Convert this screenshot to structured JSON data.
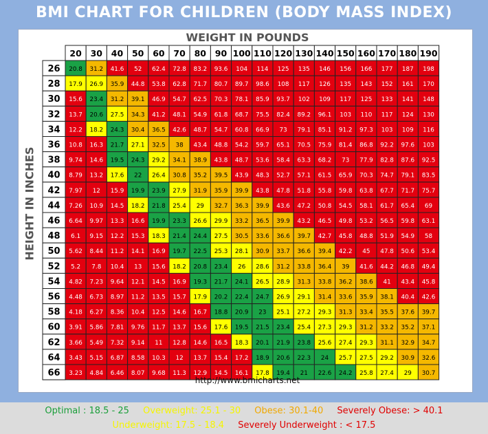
{
  "title": "BMI CHART FOR CHILDREN (BODY MASS INDEX)",
  "source_url": "http://www.bmicharts.net",
  "legend": {
    "row1": [
      {
        "label": "Optimal : 18.5 - 25",
        "color": "#1a9e3a"
      },
      {
        "label": "Overweight: 25.1 - 30",
        "color": "#f5f500"
      },
      {
        "label": "Obese: 30.1-40",
        "color": "#f0a800"
      },
      {
        "label": "Severely Obese: > 40.1",
        "color": "#e00000"
      }
    ],
    "row2": [
      {
        "label": "Underweight: 17.5 - 18.4",
        "color": "#f5f500"
      },
      {
        "label": "Severely Underweight : < 17.5",
        "color": "#e00000"
      }
    ]
  },
  "colors": {
    "optimal": "#1aa246",
    "overweight": "#ffff00",
    "obese": "#f5b800",
    "severe": "#e3000f",
    "grid_line": "#222222"
  },
  "chart_data": {
    "type": "table",
    "title": "BMI CHART FOR CHILDREN (BODY MASS INDEX)",
    "xlabel": "WEIGHT IN POUNDS",
    "ylabel": "HEIGHT IN INCHES",
    "weights": [
      "20",
      "30",
      "40",
      "50",
      "60",
      "70",
      "80",
      "90",
      "100",
      "110",
      "120",
      "130",
      "140",
      "150",
      "160",
      "170",
      "180",
      "190"
    ],
    "heights": [
      "26",
      "28",
      "30",
      "32",
      "34",
      "36",
      "38",
      "40",
      "42",
      "44",
      "46",
      "48",
      "50",
      "52",
      "54",
      "56",
      "58",
      "60",
      "62",
      "64",
      "66"
    ],
    "values": [
      [
        "20.8",
        "31.2",
        "41.6",
        "52",
        "62.4",
        "72.8",
        "83.2",
        "93.6",
        "104",
        "114",
        "125",
        "135",
        "146",
        "156",
        "166",
        "177",
        "187",
        "198"
      ],
      [
        "17.9",
        "26.9",
        "35.9",
        "44.8",
        "53.8",
        "62.8",
        "71.7",
        "80.7",
        "89.7",
        "98.6",
        "108",
        "117",
        "126",
        "135",
        "143",
        "152",
        "161",
        "170"
      ],
      [
        "15.6",
        "23.4",
        "31.2",
        "39.1",
        "46.9",
        "54.7",
        "62.5",
        "70.3",
        "78.1",
        "85.9",
        "93.7",
        "102",
        "109",
        "117",
        "125",
        "133",
        "141",
        "148"
      ],
      [
        "13.7",
        "20.6",
        "27.5",
        "34.3",
        "41.2",
        "48.1",
        "54.9",
        "61.8",
        "68.7",
        "75.5",
        "82.4",
        "89.2",
        "96.1",
        "103",
        "110",
        "117",
        "124",
        "130"
      ],
      [
        "12.2",
        "18.2",
        "24.3",
        "30.4",
        "36.5",
        "42.6",
        "48.7",
        "54.7",
        "60.8",
        "66.9",
        "73",
        "79.1",
        "85.1",
        "91.2",
        "97.3",
        "103",
        "109",
        "116"
      ],
      [
        "10.8",
        "16.3",
        "21.7",
        "27.1",
        "32.5",
        "38",
        "43.4",
        "48.8",
        "54.2",
        "59.7",
        "65.1",
        "70.5",
        "75.9",
        "81.4",
        "86.8",
        "92.2",
        "97.6",
        "103"
      ],
      [
        "9.74",
        "14.6",
        "19.5",
        "24.3",
        "29.2",
        "34.1",
        "38.9",
        "43.8",
        "48.7",
        "53.6",
        "58.4",
        "63.3",
        "68.2",
        "73",
        "77.9",
        "82.8",
        "87.6",
        "92.5"
      ],
      [
        "8.79",
        "13.2",
        "17.6",
        "22",
        "26.4",
        "30.8",
        "35.2",
        "39.5",
        "43.9",
        "48.3",
        "52.7",
        "57.1",
        "61.5",
        "65.9",
        "70.3",
        "74.7",
        "79.1",
        "83.5"
      ],
      [
        "7.97",
        "12",
        "15.9",
        "19.9",
        "23.9",
        "27.9",
        "31.9",
        "35.9",
        "39.9",
        "43.8",
        "47.8",
        "51.8",
        "55.8",
        "59.8",
        "63.8",
        "67.7",
        "71.7",
        "75.7"
      ],
      [
        "7.26",
        "10.9",
        "14.5",
        "18.2",
        "21.8",
        "25.4",
        "29",
        "32.7",
        "36.3",
        "39.9",
        "43.6",
        "47.2",
        "50.8",
        "54.5",
        "58.1",
        "61.7",
        "65.4",
        "69"
      ],
      [
        "6.64",
        "9.97",
        "13.3",
        "16.6",
        "19.9",
        "23.3",
        "26.6",
        "29.9",
        "33.2",
        "36.5",
        "39.9",
        "43.2",
        "46.5",
        "49.8",
        "53.2",
        "56.5",
        "59.8",
        "63.1"
      ],
      [
        "6.1",
        "9.15",
        "12.2",
        "15.3",
        "18.3",
        "21.4",
        "24.4",
        "27.5",
        "30.5",
        "33.6",
        "36.6",
        "39.7",
        "42.7",
        "45.8",
        "48.8",
        "51.9",
        "54.9",
        "58"
      ],
      [
        "5.62",
        "8.44",
        "11.2",
        "14.1",
        "16.9",
        "19.7",
        "22.5",
        "25.3",
        "28.1",
        "30.9",
        "33.7",
        "36.6",
        "39.4",
        "42.2",
        "45",
        "47.8",
        "50.6",
        "53.4"
      ],
      [
        "5.2",
        "7.8",
        "10.4",
        "13",
        "15.6",
        "18.2",
        "20.8",
        "23.4",
        "26",
        "28.6",
        "31.2",
        "33.8",
        "36.4",
        "39",
        "41.6",
        "44.2",
        "46.8",
        "49.4"
      ],
      [
        "4.82",
        "7.23",
        "9.64",
        "12.1",
        "14.5",
        "16.9",
        "19.3",
        "21.7",
        "24.1",
        "26.5",
        "28.9",
        "31.3",
        "33.8",
        "36.2",
        "38.6",
        "41",
        "43.4",
        "45.8"
      ],
      [
        "4.48",
        "6.73",
        "8.97",
        "11.2",
        "13.5",
        "15.7",
        "17.9",
        "20.2",
        "22.4",
        "24.7",
        "26.9",
        "29.1",
        "31.4",
        "33.6",
        "35.9",
        "38.1",
        "40.4",
        "42.6"
      ],
      [
        "4.18",
        "6.27",
        "8.36",
        "10.4",
        "12.5",
        "14.6",
        "16.7",
        "18.8",
        "20.9",
        "23",
        "25.1",
        "27.2",
        "29.3",
        "31.3",
        "33.4",
        "35.5",
        "37.6",
        "39.7"
      ],
      [
        "3.91",
        "5.86",
        "7.81",
        "9.76",
        "11.7",
        "13.7",
        "15.6",
        "17.6",
        "19.5",
        "21.5",
        "23.4",
        "25.4",
        "27.3",
        "29.3",
        "31.2",
        "33.2",
        "35.2",
        "37.1"
      ],
      [
        "3.66",
        "5.49",
        "7.32",
        "9.14",
        "11",
        "12.8",
        "14.6",
        "16.5",
        "18.3",
        "20.1",
        "21.9",
        "23.8",
        "25.6",
        "27.4",
        "29.3",
        "31.1",
        "32.9",
        "34.7"
      ],
      [
        "3.43",
        "5.15",
        "6.87",
        "8.58",
        "10.3",
        "12",
        "13.7",
        "15.4",
        "17.2",
        "18.9",
        "20.6",
        "22.3",
        "24",
        "25.7",
        "27.5",
        "29.2",
        "30.9",
        "32.6"
      ],
      [
        "3.23",
        "4.84",
        "6.46",
        "8.07",
        "9.68",
        "11.3",
        "12.9",
        "14.5",
        "16.1",
        "17.8",
        "19.4",
        "21",
        "22.6",
        "24.2",
        "25.8",
        "27.4",
        "29",
        "30.7"
      ]
    ]
  }
}
